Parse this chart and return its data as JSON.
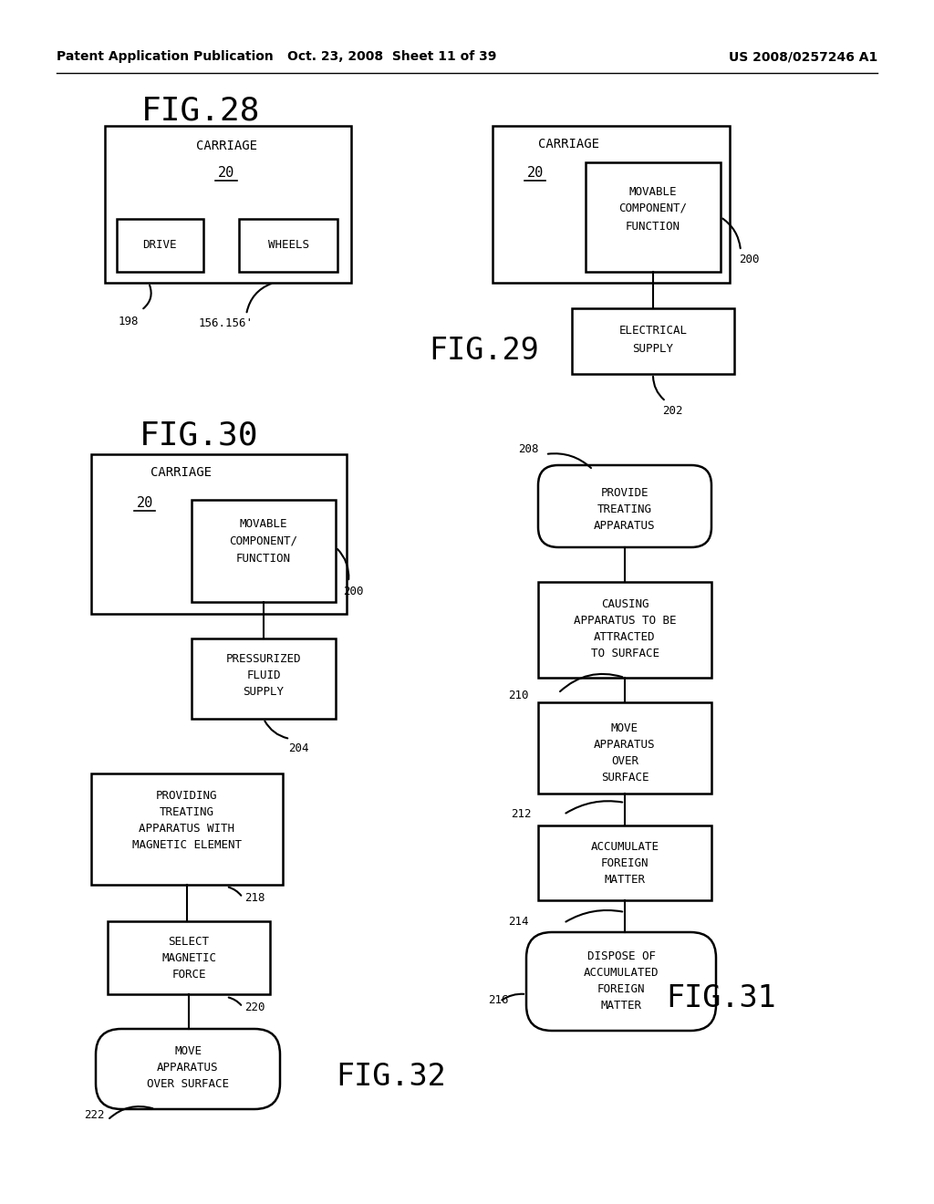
{
  "bg_color": "#ffffff",
  "header_left": "Patent Application Publication",
  "header_mid": "Oct. 23, 2008  Sheet 11 of 39",
  "header_right": "US 2008/0257246 A1",
  "fig28_title": "FIG.28",
  "fig29_title": "FIG.29",
  "fig30_title": "FIG.30",
  "fig31_title": "FIG.31",
  "fig32_title": "FIG.32"
}
